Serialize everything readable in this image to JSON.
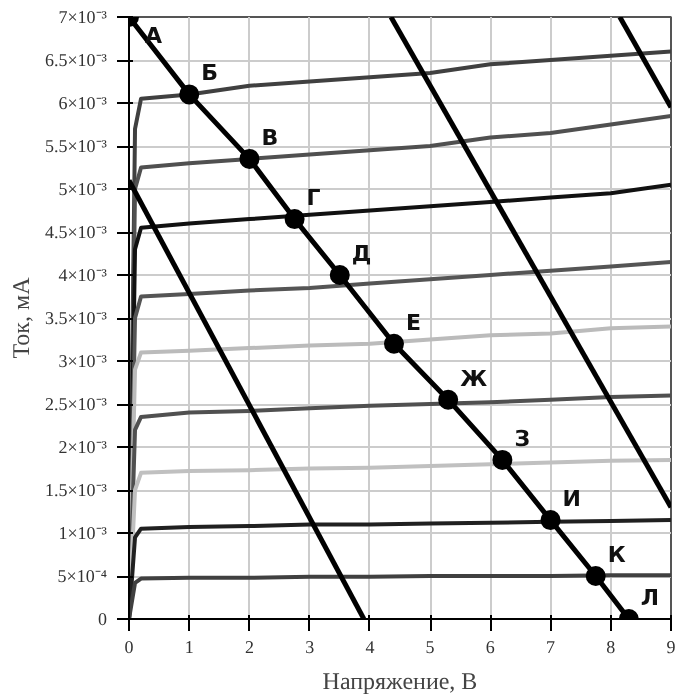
{
  "chart_data": {
    "type": "line",
    "xlabel": "Напряжение, В",
    "ylabel": "Ток, мА",
    "xlim": [
      0,
      9
    ],
    "xticks": [
      0,
      1,
      2,
      3,
      4,
      5,
      6,
      7,
      8,
      9
    ],
    "ylim": [
      0,
      0.007
    ],
    "yticks": [
      0,
      {
        "value": 0.0005,
        "label": "5×10⁻⁴"
      },
      {
        "value": 0.001,
        "label": "1×10⁻³"
      },
      {
        "value": 0.0015,
        "label": "1.5×10⁻³"
      },
      {
        "value": 0.002,
        "label": "2×10⁻³"
      },
      {
        "value": 0.0025,
        "label": "2.5×10⁻³"
      },
      {
        "value": 0.003,
        "label": "3×10⁻³"
      },
      {
        "value": 0.0035,
        "label": "3.5×10⁻³"
      },
      {
        "value": 0.004,
        "label": "4×10⁻³"
      },
      {
        "value": 0.0045,
        "label": "4.5×10⁻³"
      },
      {
        "value": 0.005,
        "label": "5×10⁻³"
      },
      {
        "value": 0.0055,
        "label": "5.5×10⁻³"
      },
      {
        "value": 0.006,
        "label": "6×10⁻³"
      },
      {
        "value": 0.0065,
        "label": "6.5×10⁻³"
      },
      {
        "value": 0.007,
        "label": "7×10⁻³"
      }
    ],
    "grid": true,
    "x": [
      0,
      0.1,
      0.2,
      1,
      2,
      3,
      4,
      5,
      6,
      7,
      8,
      9
    ],
    "series": [
      {
        "color": "#404040",
        "values": [
          0,
          0.0057,
          0.00605,
          0.0061,
          0.0062,
          0.00625,
          0.0063,
          0.00635,
          0.00645,
          0.0065,
          0.00655,
          0.0066
        ]
      },
      {
        "color": "#505050",
        "values": [
          0,
          0.005,
          0.00525,
          0.0053,
          0.00535,
          0.0054,
          0.00545,
          0.0055,
          0.0056,
          0.00565,
          0.00575,
          0.00585
        ]
      },
      {
        "color": "#111111",
        "values": [
          0,
          0.0043,
          0.00455,
          0.0046,
          0.00465,
          0.0047,
          0.00475,
          0.0048,
          0.00485,
          0.0049,
          0.00495,
          0.00505
        ]
      },
      {
        "color": "#555555",
        "values": [
          0,
          0.0035,
          0.00375,
          0.00378,
          0.00382,
          0.00385,
          0.0039,
          0.00395,
          0.004,
          0.00405,
          0.0041,
          0.00415
        ]
      },
      {
        "color": "#bbbbbb",
        "values": [
          0,
          0.0029,
          0.0031,
          0.00312,
          0.00315,
          0.00318,
          0.0032,
          0.00325,
          0.0033,
          0.00332,
          0.00338,
          0.0034
        ]
      },
      {
        "color": "#505050",
        "values": [
          0,
          0.0022,
          0.00235,
          0.0024,
          0.00242,
          0.00245,
          0.00248,
          0.0025,
          0.00252,
          0.00255,
          0.00258,
          0.0026
        ]
      },
      {
        "color": "#c0c0c0",
        "values": [
          0,
          0.0015,
          0.0017,
          0.00172,
          0.00173,
          0.00175,
          0.00176,
          0.00178,
          0.0018,
          0.00182,
          0.00184,
          0.00185
        ]
      },
      {
        "color": "#202020",
        "values": [
          0,
          0.00095,
          0.00105,
          0.00107,
          0.00108,
          0.0011,
          0.0011,
          0.00111,
          0.00112,
          0.00113,
          0.00114,
          0.00115
        ]
      },
      {
        "color": "#404040",
        "values": [
          0,
          0.00042,
          0.00047,
          0.00048,
          0.00048,
          0.00049,
          0.00049,
          0.0005,
          0.0005,
          0.0005,
          0.00051,
          0.00051
        ]
      },
      {
        "color": "#000000",
        "x": [
          0,
          3.9
        ],
        "values": [
          0.0051,
          0
        ]
      },
      {
        "color": "#000000",
        "x": [
          4.35,
          9
        ],
        "values": [
          0.007,
          0.0013
        ]
      },
      {
        "color": "#000000",
        "x": [
          8.15,
          9
        ],
        "values": [
          0.007,
          0.00595
        ]
      },
      {
        "color": "#000000",
        "marker": "circle",
        "x": [
          0,
          1,
          2,
          2.75,
          3.5,
          4.4,
          5.3,
          6.2,
          7.0,
          7.75,
          8.3
        ],
        "values": [
          0.007,
          0.0061,
          0.00535,
          0.00465,
          0.004,
          0.0032,
          0.00255,
          0.00185,
          0.00115,
          0.0005,
          0
        ]
      }
    ],
    "annotations": [
      {
        "text": "А",
        "x": 0,
        "y": 0.007
      },
      {
        "text": "Б",
        "x": 1,
        "y": 0.0061
      },
      {
        "text": "В",
        "x": 2,
        "y": 0.00535
      },
      {
        "text": "Г",
        "x": 2.75,
        "y": 0.00465
      },
      {
        "text": "Д",
        "x": 3.5,
        "y": 0.004
      },
      {
        "text": "Е",
        "x": 4.4,
        "y": 0.0032
      },
      {
        "text": "Ж",
        "x": 5.3,
        "y": 0.00255
      },
      {
        "text": "З",
        "x": 6.2,
        "y": 0.00185
      },
      {
        "text": "И",
        "x": 7.0,
        "y": 0.00115
      },
      {
        "text": "К",
        "x": 7.75,
        "y": 0.0005
      },
      {
        "text": "Л",
        "x": 8.3,
        "y": 0
      }
    ]
  }
}
